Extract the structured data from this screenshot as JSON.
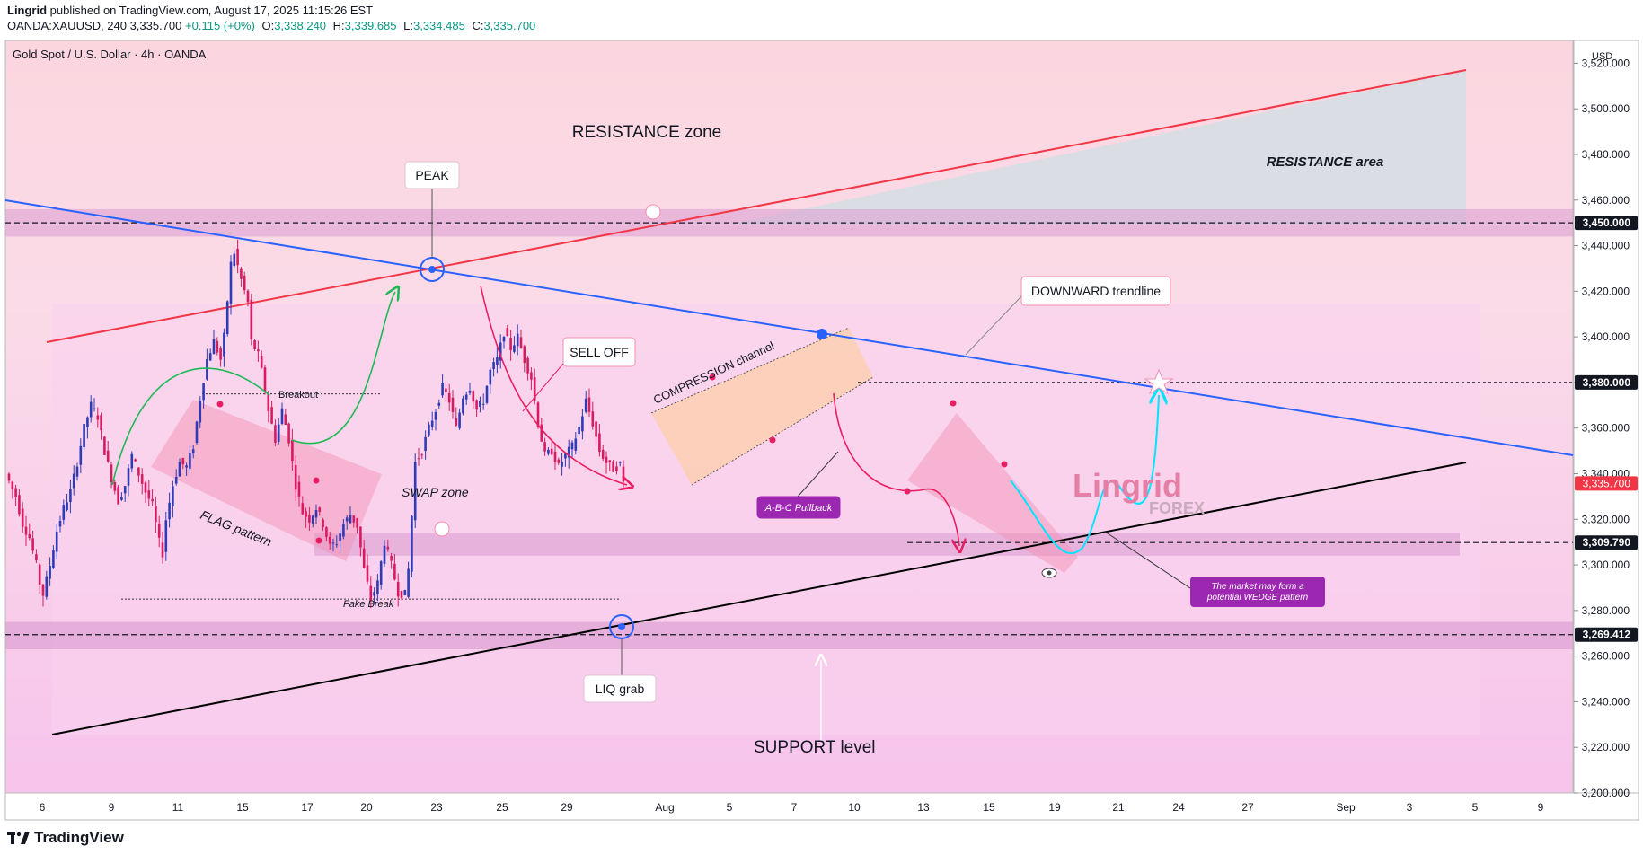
{
  "header": {
    "author": "Lingrid",
    "published_text": "published on TradingView.com, August 17, 2025 11:15:26 EST",
    "symbol_line": "OANDA:XAUUSD, 240",
    "last_price": "3,335.700",
    "change": "+0.115 (+0%)",
    "open_label": "O:",
    "open": "3,338.240",
    "high_label": "H:",
    "high": "3,339.685",
    "low_label": "L:",
    "low": "3,334.485",
    "close_label": "C:",
    "close": "3,335.700"
  },
  "chart_title": "Gold Spot / U.S. Dollar · 4h · OANDA",
  "footer": {
    "brand": "TradingView"
  },
  "colors": {
    "bull": "#2e3bb5",
    "bear": "#d81b60",
    "pink_zone": "#f4c6e4",
    "band": "#d89acf",
    "red_line": "#f23645",
    "blue_line": "#2962ff",
    "black_line": "#000000",
    "magenta": "#e91e63",
    "green_arrow": "#1db954",
    "cyan": "#00e5ff",
    "purple_badge": "#9c27b0"
  },
  "chart_data": {
    "type": "candlestick",
    "currency": "USD",
    "ylim": [
      3200,
      3530
    ],
    "y_ticks": [
      3200,
      3220,
      3240,
      3260,
      3280,
      3300,
      3320,
      3340,
      3360,
      3380,
      3400,
      3420,
      3440,
      3460,
      3480,
      3500,
      3520
    ],
    "y_tick_labels": [
      "3,200.000",
      "3,220.000",
      "3,240.000",
      "3,260.000",
      "3,280.000",
      "3,300.000",
      "3,320.000",
      "3,340.000",
      "3,360.000",
      "3,380.000",
      "3,400.000",
      "3,420.000",
      "3,440.000",
      "3,460.000",
      "3,480.000",
      "3,500.000",
      "3,520.000"
    ],
    "x_ticks": [
      "6",
      "9",
      "11",
      "15",
      "17",
      "20",
      "23",
      "25",
      "29",
      "Aug",
      "5",
      "7",
      "10",
      "13",
      "15",
      "19",
      "21",
      "24",
      "27",
      "Sep",
      "3",
      "5",
      "9"
    ],
    "price_labels": [
      {
        "value": 3450,
        "text": "3,450.000",
        "style": "dark"
      },
      {
        "value": 3380,
        "text": "3,380.000",
        "style": "dark"
      },
      {
        "value": 3335.7,
        "text": "3,335.700",
        "style": "red"
      },
      {
        "value": 3309.79,
        "text": "3,309.790",
        "style": "dark"
      },
      {
        "value": 3269.412,
        "text": "3,269.412",
        "style": "dark"
      }
    ],
    "price_path": [
      [
        0,
        3340
      ],
      [
        3,
        3330
      ],
      [
        5,
        3318
      ],
      [
        7,
        3312
      ],
      [
        9,
        3300
      ],
      [
        10,
        3292
      ],
      [
        11,
        3287
      ],
      [
        13,
        3300
      ],
      [
        15,
        3315
      ],
      [
        17,
        3325
      ],
      [
        19,
        3332
      ],
      [
        21,
        3345
      ],
      [
        23,
        3360
      ],
      [
        25,
        3370
      ],
      [
        27,
        3365
      ],
      [
        29,
        3350
      ],
      [
        31,
        3338
      ],
      [
        33,
        3328
      ],
      [
        35,
        3335
      ],
      [
        37,
        3348
      ],
      [
        39,
        3340
      ],
      [
        41,
        3332
      ],
      [
        43,
        3326
      ],
      [
        45,
        3310
      ],
      [
        46,
        3305
      ],
      [
        47,
        3320
      ],
      [
        49,
        3335
      ],
      [
        51,
        3345
      ],
      [
        53,
        3343
      ],
      [
        55,
        3352
      ],
      [
        57,
        3373
      ],
      [
        59,
        3390
      ],
      [
        61,
        3398
      ],
      [
        63,
        3390
      ],
      [
        64,
        3400
      ],
      [
        66,
        3432
      ],
      [
        67,
        3437
      ],
      [
        69,
        3425
      ],
      [
        71,
        3415
      ],
      [
        72,
        3398
      ],
      [
        74,
        3392
      ],
      [
        75,
        3385
      ],
      [
        77,
        3368
      ],
      [
        79,
        3355
      ],
      [
        81,
        3368
      ],
      [
        83,
        3355
      ],
      [
        85,
        3335
      ],
      [
        87,
        3323
      ],
      [
        89,
        3320
      ],
      [
        91,
        3325
      ],
      [
        93,
        3318
      ],
      [
        95,
        3308
      ],
      [
        97,
        3310
      ],
      [
        99,
        3318
      ],
      [
        101,
        3322
      ],
      [
        103,
        3317
      ],
      [
        105,
        3298
      ],
      [
        107,
        3285
      ],
      [
        109,
        3292
      ],
      [
        111,
        3310
      ],
      [
        113,
        3300
      ],
      [
        115,
        3288
      ],
      [
        117,
        3287
      ],
      [
        118,
        3298
      ],
      [
        120,
        3345
      ],
      [
        122,
        3350
      ],
      [
        124,
        3360
      ],
      [
        126,
        3368
      ],
      [
        128,
        3378
      ],
      [
        130,
        3372
      ],
      [
        132,
        3360
      ],
      [
        134,
        3374
      ],
      [
        136,
        3378
      ],
      [
        138,
        3368
      ],
      [
        140,
        3372
      ],
      [
        142,
        3385
      ],
      [
        144,
        3390
      ],
      [
        146,
        3402
      ],
      [
        148,
        3395
      ],
      [
        150,
        3400
      ],
      [
        152,
        3390
      ],
      [
        154,
        3382
      ],
      [
        156,
        3362
      ],
      [
        158,
        3348
      ],
      [
        160,
        3350
      ],
      [
        162,
        3343
      ],
      [
        164,
        3348
      ],
      [
        166,
        3352
      ],
      [
        168,
        3360
      ],
      [
        170,
        3372
      ],
      [
        172,
        3362
      ],
      [
        174,
        3350
      ],
      [
        176,
        3345
      ],
      [
        178,
        3342
      ],
      [
        180,
        3344
      ],
      [
        181,
        3336
      ]
    ],
    "annotations": [
      "RESISTANCE zone",
      "RESISTANCE area",
      "PEAK",
      "DOWNWARD trendline",
      "SELL OFF",
      "COMPRESSION channel",
      "Breakout",
      "SWAP zone",
      "FLAG pattern",
      "Fake Break",
      "A-B-C Pullback",
      "LIQ grab",
      "SUPPORT level",
      "The market may form a",
      "potential WEDGE pattern",
      "Lingrid",
      "FOREX"
    ]
  }
}
